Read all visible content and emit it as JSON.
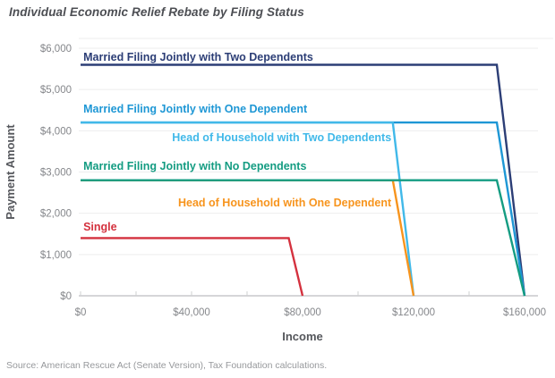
{
  "title": "Individual Economic Relief Rebate by Filing Status",
  "source": "Source: American Rescue Act (Senate Version), Tax Foundation calculations.",
  "chart_data": {
    "type": "line",
    "title": "Individual Economic Relief Rebate by Filing Status",
    "xlabel": "Income",
    "ylabel": "Payment Amount",
    "xlim": [
      0,
      160000
    ],
    "ylim": [
      0,
      6000
    ],
    "x_ticks": [
      0,
      40000,
      80000,
      120000,
      160000
    ],
    "x_tick_labels": [
      "$0",
      "$40,000",
      "$80,000",
      "$120,000",
      "$160,000"
    ],
    "x_minor_tick_step": 20000,
    "y_ticks": [
      0,
      1000,
      2000,
      3000,
      4000,
      5000,
      6000
    ],
    "y_tick_labels": [
      "$0",
      "$1,000",
      "$2,000",
      "$3,000",
      "$4,000",
      "$5,000",
      "$6,000"
    ],
    "grid": "horizontal",
    "legend_position": "inline-labels",
    "axis_color": "#c8c9cb",
    "grid_color": "#ededee",
    "series": [
      {
        "name": "Married Filing Jointly with Two Dependents",
        "color": "#2c3e76",
        "points": [
          [
            0,
            5600
          ],
          [
            150000,
            5600
          ],
          [
            160000,
            0
          ]
        ],
        "label": {
          "x": 1000,
          "y": 5700,
          "anchor": "start"
        }
      },
      {
        "name": "Married Filing Jointly with One Dependent",
        "color": "#1e97d5",
        "points": [
          [
            0,
            4200
          ],
          [
            150000,
            4200
          ],
          [
            160000,
            0
          ]
        ],
        "label": {
          "x": 1000,
          "y": 4440,
          "anchor": "start"
        }
      },
      {
        "name": "Head of Household with Two Dependents",
        "color": "#41b9e9",
        "points": [
          [
            0,
            4200
          ],
          [
            112500,
            4200
          ],
          [
            120000,
            0
          ]
        ],
        "label": {
          "x": 112000,
          "y": 3750,
          "anchor": "end"
        }
      },
      {
        "name": "Head of Household with One Dependent",
        "color": "#f7941d",
        "points": [
          [
            0,
            2800
          ],
          [
            112500,
            2800
          ],
          [
            120000,
            0
          ]
        ],
        "label": {
          "x": 112000,
          "y": 2170,
          "anchor": "end"
        }
      },
      {
        "name": "Married Filing Jointly with No Dependents",
        "color": "#149c82",
        "points": [
          [
            0,
            2800
          ],
          [
            150000,
            2800
          ],
          [
            160000,
            0
          ]
        ],
        "label": {
          "x": 1000,
          "y": 3050,
          "anchor": "start"
        }
      },
      {
        "name": "Single",
        "color": "#d4313e",
        "points": [
          [
            0,
            1400
          ],
          [
            75000,
            1400
          ],
          [
            80000,
            0
          ]
        ],
        "label": {
          "x": 1000,
          "y": 1580,
          "anchor": "start"
        }
      }
    ]
  }
}
